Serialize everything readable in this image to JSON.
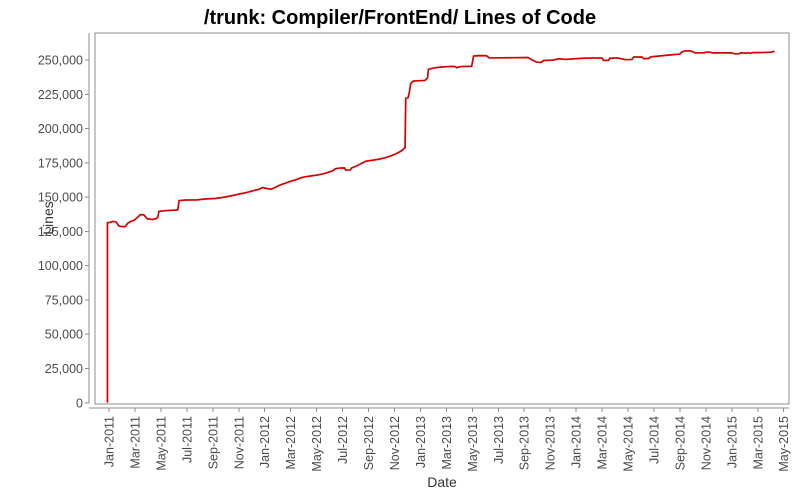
{
  "chart_data": {
    "type": "line",
    "title": "/trunk: Compiler/FrontEnd/ Lines of Code",
    "xlabel": "Date",
    "ylabel": "Lines",
    "legend": "none",
    "grid": "off",
    "plot_background": "#ffffff",
    "axis_color": "#8c8c8c",
    "tick_text_color": "#4a4a4a",
    "x_tick_interval_months": 2,
    "x_tick_labels": [
      "Jan-2011",
      "Mar-2011",
      "May-2011",
      "Jul-2011",
      "Sep-2011",
      "Nov-2011",
      "Jan-2012",
      "Mar-2012",
      "May-2012",
      "Jul-2012",
      "Sep-2012",
      "Nov-2012",
      "Jan-2013",
      "Mar-2013",
      "May-2013",
      "Jul-2013",
      "Sep-2013",
      "Nov-2013",
      "Jan-2014",
      "Mar-2014",
      "May-2014",
      "Jul-2014",
      "Sep-2014",
      "Nov-2014",
      "Jan-2015",
      "Mar-2015",
      "May-2015"
    ],
    "y_ticks": [
      {
        "v": 0,
        "label": "0"
      },
      {
        "v": 25000,
        "label": "25,000"
      },
      {
        "v": 50000,
        "label": "50,000"
      },
      {
        "v": 75000,
        "label": "75,000"
      },
      {
        "v": 100000,
        "label": "100,000"
      },
      {
        "v": 125000,
        "label": "125,000"
      },
      {
        "v": 150000,
        "label": "150,000"
      },
      {
        "v": 175000,
        "label": "175,000"
      },
      {
        "v": 200000,
        "label": "200,000"
      },
      {
        "v": 225000,
        "label": "225,000"
      },
      {
        "v": 250000,
        "label": "250,000"
      }
    ],
    "ylim": [
      0,
      270000
    ],
    "xlim_months_from_jan2011": [
      -1.1,
      52.4
    ],
    "series": [
      {
        "name": "Lines of Code",
        "color": "#d40000",
        "x_unit": "months_since_2011_01",
        "points": [
          [
            -0.12,
            0
          ],
          [
            -0.12,
            131300
          ],
          [
            0.15,
            131700
          ],
          [
            0.3,
            132300
          ],
          [
            0.55,
            131800
          ],
          [
            0.75,
            129100
          ],
          [
            0.9,
            128600
          ],
          [
            1.25,
            128400
          ],
          [
            1.45,
            131000
          ],
          [
            1.7,
            132400
          ],
          [
            1.95,
            133200
          ],
          [
            2.1,
            134400
          ],
          [
            2.3,
            136200
          ],
          [
            2.45,
            137300
          ],
          [
            2.7,
            136900
          ],
          [
            2.95,
            134200
          ],
          [
            3.35,
            133700
          ],
          [
            3.6,
            134300
          ],
          [
            3.75,
            135000
          ],
          [
            3.85,
            139600
          ],
          [
            4.3,
            140100
          ],
          [
            5.1,
            140500
          ],
          [
            5.3,
            140700
          ],
          [
            5.4,
            147400
          ],
          [
            5.9,
            147900
          ],
          [
            6.8,
            148000
          ],
          [
            7.5,
            148700
          ],
          [
            8.2,
            149000
          ],
          [
            8.9,
            150000
          ],
          [
            9.5,
            151100
          ],
          [
            10.1,
            152400
          ],
          [
            10.6,
            153300
          ],
          [
            11.0,
            154400
          ],
          [
            11.5,
            155500
          ],
          [
            11.85,
            157000
          ],
          [
            12.2,
            156200
          ],
          [
            12.5,
            155700
          ],
          [
            12.85,
            157300
          ],
          [
            13.2,
            158900
          ],
          [
            13.6,
            160200
          ],
          [
            13.95,
            161400
          ],
          [
            14.4,
            162600
          ],
          [
            14.75,
            164000
          ],
          [
            15.1,
            164800
          ],
          [
            15.6,
            165500
          ],
          [
            16.1,
            166200
          ],
          [
            16.6,
            167200
          ],
          [
            16.95,
            168300
          ],
          [
            17.25,
            169200
          ],
          [
            17.45,
            170700
          ],
          [
            17.8,
            171200
          ],
          [
            18.15,
            171300
          ],
          [
            18.25,
            169700
          ],
          [
            18.6,
            169800
          ],
          [
            18.7,
            171300
          ],
          [
            19.1,
            172800
          ],
          [
            19.45,
            174500
          ],
          [
            19.8,
            176200
          ],
          [
            20.3,
            176900
          ],
          [
            20.9,
            177800
          ],
          [
            21.4,
            179000
          ],
          [
            21.8,
            180300
          ],
          [
            22.15,
            181800
          ],
          [
            22.45,
            183300
          ],
          [
            22.65,
            184500
          ],
          [
            22.78,
            185900
          ],
          [
            22.82,
            186100
          ],
          [
            22.87,
            222000
          ],
          [
            23.05,
            222500
          ],
          [
            23.15,
            226500
          ],
          [
            23.25,
            232800
          ],
          [
            23.45,
            234600
          ],
          [
            23.9,
            234900
          ],
          [
            24.35,
            235100
          ],
          [
            24.55,
            237000
          ],
          [
            24.62,
            243200
          ],
          [
            25.0,
            244100
          ],
          [
            25.5,
            244800
          ],
          [
            26.1,
            245200
          ],
          [
            26.65,
            245300
          ],
          [
            26.8,
            244400
          ],
          [
            27.1,
            245200
          ],
          [
            27.95,
            245400
          ],
          [
            28.1,
            252900
          ],
          [
            28.6,
            253200
          ],
          [
            29.1,
            253100
          ],
          [
            29.3,
            251500
          ],
          [
            30.2,
            251600
          ],
          [
            31.2,
            251700
          ],
          [
            32.3,
            251800
          ],
          [
            32.6,
            250100
          ],
          [
            32.95,
            248400
          ],
          [
            33.3,
            248300
          ],
          [
            33.5,
            249700
          ],
          [
            34.2,
            249900
          ],
          [
            34.7,
            250900
          ],
          [
            35.2,
            250400
          ],
          [
            35.9,
            250900
          ],
          [
            36.5,
            251300
          ],
          [
            37.5,
            251500
          ],
          [
            38.0,
            251400
          ],
          [
            38.1,
            249700
          ],
          [
            38.5,
            249800
          ],
          [
            38.6,
            251300
          ],
          [
            39.2,
            251500
          ],
          [
            39.8,
            250300
          ],
          [
            40.3,
            250400
          ],
          [
            40.45,
            252200
          ],
          [
            41.1,
            252100
          ],
          [
            41.2,
            251000
          ],
          [
            41.6,
            251100
          ],
          [
            41.75,
            252300
          ],
          [
            42.6,
            253100
          ],
          [
            43.5,
            253900
          ],
          [
            44.0,
            254300
          ],
          [
            44.15,
            255900
          ],
          [
            44.45,
            256700
          ],
          [
            44.85,
            256600
          ],
          [
            45.2,
            255200
          ],
          [
            45.9,
            255300
          ],
          [
            46.05,
            255800
          ],
          [
            46.35,
            255700
          ],
          [
            46.5,
            255200
          ],
          [
            48.0,
            255200
          ],
          [
            48.2,
            254500
          ],
          [
            48.55,
            254500
          ],
          [
            48.7,
            255300
          ],
          [
            49.1,
            254900
          ],
          [
            49.25,
            255300
          ],
          [
            49.45,
            254900
          ],
          [
            49.6,
            255400
          ],
          [
            50.5,
            255500
          ],
          [
            51.0,
            255700
          ],
          [
            51.3,
            256300
          ]
        ]
      }
    ]
  }
}
